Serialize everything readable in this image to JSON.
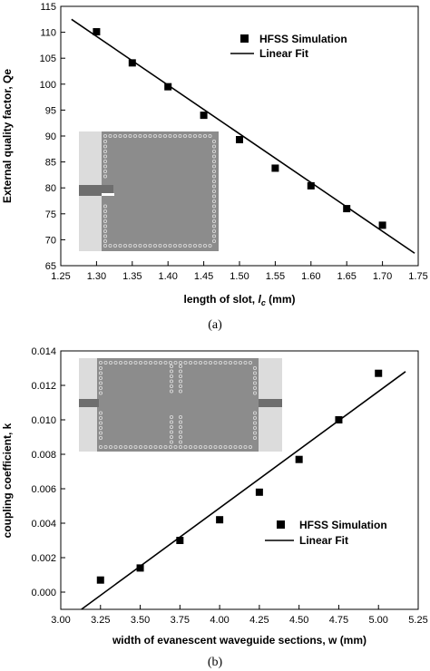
{
  "chart_data": [
    {
      "type": "scatter",
      "caption": "(a)",
      "xlabel_main": "length of slot, ",
      "xlabel_sym": "l",
      "xlabel_sub": "c",
      "xlabel_unit": " (mm)",
      "ylabel": "External quality factor, Qe",
      "xlim": [
        1.25,
        1.75
      ],
      "ylim": [
        65,
        115
      ],
      "xticks": [
        "1.25",
        "1.30",
        "1.35",
        "1.40",
        "1.45",
        "1.50",
        "1.55",
        "1.60",
        "1.65",
        "1.70",
        "1.75"
      ],
      "yticks": [
        "65",
        "70",
        "75",
        "80",
        "85",
        "90",
        "95",
        "100",
        "105",
        "110",
        "115"
      ],
      "legend_position": "top-right",
      "series": [
        {
          "name": "HFSS Simulation",
          "marker": "square",
          "x": [
            1.3,
            1.35,
            1.4,
            1.45,
            1.5,
            1.55,
            1.6,
            1.65,
            1.7
          ],
          "y": [
            110.1,
            104.1,
            99.5,
            94.0,
            89.3,
            83.8,
            80.4,
            76.0,
            72.8
          ]
        },
        {
          "name": "Linear Fit",
          "marker": "line",
          "x": [
            1.265,
            1.745
          ],
          "y": [
            112.5,
            67.4
          ]
        }
      ]
    },
    {
      "type": "scatter",
      "caption": "(b)",
      "xlabel": "width of evanescent waveguide sections, w (mm)",
      "ylabel": "coupling coefficient, k",
      "xlim": [
        3.0,
        5.25
      ],
      "ylim": [
        -0.001,
        0.014
      ],
      "xticks": [
        "3.00",
        "3.25",
        "3.50",
        "3.75",
        "4.00",
        "4.25",
        "4.50",
        "4.75",
        "5.00",
        "5.25"
      ],
      "yticks": [
        "0.000",
        "0.002",
        "0.004",
        "0.006",
        "0.008",
        "0.010",
        "0.012",
        "0.014"
      ],
      "legend_position": "bottom-right",
      "series": [
        {
          "name": "HFSS Simulation",
          "marker": "square",
          "x": [
            3.25,
            3.5,
            3.75,
            4.0,
            4.25,
            4.5,
            4.75,
            5.0
          ],
          "y": [
            0.0007,
            0.0014,
            0.003,
            0.0042,
            0.0058,
            0.0077,
            0.01,
            0.0127
          ]
        },
        {
          "name": "Linear Fit",
          "marker": "line",
          "x": [
            3.13,
            5.17
          ],
          "y": [
            -0.001,
            0.0128
          ]
        }
      ]
    }
  ]
}
